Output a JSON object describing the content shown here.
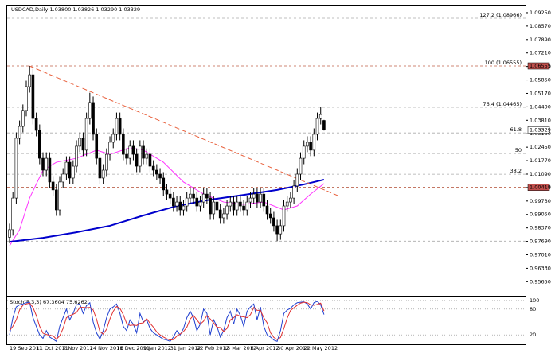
{
  "chart_data": {
    "type": "candlestick",
    "title": "USDCAD,Daily 1.03800 1.03826 1.03290 1.03329",
    "categories": [
      "19 Sep 2011",
      null,
      null,
      null,
      null,
      null,
      null,
      null,
      "11 Oct 2011",
      null,
      null,
      null,
      null,
      null,
      null,
      null,
      "2 Nov 2011",
      null,
      null,
      null,
      null,
      null,
      null,
      null,
      "24 Nov 2011",
      null,
      null,
      null,
      null,
      null,
      null,
      null,
      "16 Dec 2011",
      null,
      null,
      null,
      null,
      null,
      null,
      null,
      "9 Jan 2012",
      null,
      null,
      null,
      null,
      null,
      null,
      null,
      "31 Jan 2012",
      null,
      null,
      null,
      null,
      null,
      null,
      null,
      "22 Feb 2012",
      null,
      null,
      null,
      null,
      null,
      null,
      null,
      "15 Mar 2012",
      null,
      null,
      null,
      null,
      null,
      null,
      null,
      "6 Apr 2012",
      null,
      null,
      null,
      null,
      null,
      null,
      null,
      "30 Apr 2012",
      null,
      null,
      null,
      null,
      null,
      null,
      null,
      "22 May 2012",
      null,
      null,
      null,
      null,
      null,
      null
    ],
    "xlim": [
      0,
      154
    ],
    "ylim": [
      0.9494,
      1.0961
    ],
    "yticks": [
      {
        "value": 1.0925,
        "label": "1.09250"
      },
      {
        "value": 1.0857,
        "label": "1.08570"
      },
      {
        "value": 1.0789,
        "label": "1.07890"
      },
      {
        "value": 1.0721,
        "label": "1.07210"
      },
      {
        "value": 1.0653,
        "label": "1.06530"
      },
      {
        "value": 1.0585,
        "label": "1.05850"
      },
      {
        "value": 1.0517,
        "label": "1.05170"
      },
      {
        "value": 1.0449,
        "label": "1.04490"
      },
      {
        "value": 1.0381,
        "label": "1.03810"
      },
      {
        "value": 1.0313,
        "label": "1.03130"
      },
      {
        "value": 1.0245,
        "label": "1.02450"
      },
      {
        "value": 1.0177,
        "label": "1.01770"
      },
      {
        "value": 1.0109,
        "label": "1.01090"
      },
      {
        "value": 1.0041,
        "label": "1.00410"
      },
      {
        "value": 0.9973,
        "label": "0.99730"
      },
      {
        "value": 0.9905,
        "label": "0.99050"
      },
      {
        "value": 0.9837,
        "label": "0.98370"
      },
      {
        "value": 0.9769,
        "label": "0.97690"
      },
      {
        "value": 0.9701,
        "label": "0.97010"
      },
      {
        "value": 0.9633,
        "label": "0.96330"
      },
      {
        "value": 0.9565,
        "label": "0.95650"
      }
    ],
    "up_color": "#ffffff",
    "down_color": "#000000",
    "open": [
      0.979,
      0.9828,
      0.9988,
      1.029,
      1.035,
      1.0431,
      1.0551,
      1.0611,
      1.039,
      1.033,
      1.0189,
      1.0129,
      1.0189,
      1.0069,
      1.0029,
      0.9928,
      1.0069,
      1.0109,
      1.0169,
      1.0089,
      1.0149,
      1.025,
      1.029,
      1.023,
      1.039,
      1.0471,
      1.031,
      1.0189,
      1.0089,
      1.0129,
      1.0209,
      1.027,
      1.031,
      1.039,
      1.031,
      1.0209,
      1.0189,
      1.025,
      1.0209,
      1.0149,
      1.025,
      1.0189,
      1.0209,
      1.0149,
      1.0129,
      1.0109,
      1.0089,
      1.0029,
      1.0008,
      0.9988,
      0.9948,
      0.9968,
      0.9928,
      0.9948,
      0.9988,
      1.0008,
      0.9988,
      0.9948,
      0.9968,
      1.0008,
      0.9988,
      0.9908,
      0.9968,
      0.9928,
      0.9888,
      0.9908,
      0.9948,
      0.9968,
      0.9928,
      0.9968,
      0.9948,
      0.9928,
      0.9968,
      0.9988,
      1.0008,
      0.9968,
      1.0008,
      0.9948,
      0.9908,
      0.9888,
      0.9848,
      0.9807,
      0.9848,
      0.9948,
      0.9968,
      0.9988,
      1.0049,
      1.0109,
      1.0189,
      1.025,
      1.027,
      1.023,
      1.031,
      1.039,
      1.038
    ],
    "high": [
      0.9858,
      1.0018,
      1.032,
      1.038,
      1.0461,
      1.0581,
      1.0655,
      1.0641,
      1.042,
      1.036,
      1.0219,
      1.0219,
      1.0219,
      1.0099,
      1.0059,
      1.0099,
      1.0139,
      1.0199,
      1.0199,
      1.0179,
      1.028,
      1.032,
      1.032,
      1.042,
      1.052,
      1.0501,
      1.034,
      1.0219,
      1.0159,
      1.0239,
      1.03,
      1.034,
      1.042,
      1.042,
      1.034,
      1.0239,
      1.028,
      1.028,
      1.0239,
      1.028,
      1.028,
      1.0239,
      1.0239,
      1.0179,
      1.0159,
      1.0139,
      1.0119,
      1.0059,
      1.0038,
      1.0018,
      0.9998,
      0.9998,
      0.9978,
      1.0018,
      1.0038,
      1.0038,
      1.0018,
      0.9998,
      1.0038,
      1.0038,
      1.0018,
      0.9998,
      0.9998,
      0.9958,
      0.9938,
      0.9978,
      0.9998,
      0.9998,
      0.9998,
      0.9998,
      0.9978,
      0.9998,
      1.0018,
      1.0038,
      1.0038,
      1.0038,
      1.0038,
      0.9978,
      0.9938,
      0.9918,
      0.9878,
      0.9878,
      0.9978,
      0.9998,
      1.0018,
      1.0079,
      1.0139,
      1.0219,
      1.028,
      1.03,
      1.03,
      1.034,
      1.042,
      1.045,
      1.0383
    ],
    "low": [
      0.976,
      0.9798,
      0.9958,
      1.026,
      1.032,
      1.0401,
      1.0521,
      1.036,
      1.03,
      1.0159,
      1.0099,
      1.0099,
      1.0039,
      0.9999,
      0.9898,
      0.9898,
      1.0039,
      1.0079,
      1.0059,
      1.0059,
      1.0119,
      1.022,
      1.02,
      1.02,
      1.036,
      1.028,
      1.0159,
      1.0059,
      1.0059,
      1.0099,
      1.0179,
      1.024,
      1.028,
      1.028,
      1.0179,
      1.0159,
      1.0159,
      1.0179,
      1.0119,
      1.0119,
      1.0159,
      1.0159,
      1.0119,
      1.0099,
      1.0079,
      1.0059,
      0.9999,
      0.9978,
      0.9958,
      0.9918,
      0.9918,
      0.9898,
      0.9898,
      0.9918,
      0.9958,
      0.9958,
      0.9918,
      0.9918,
      0.9938,
      0.9958,
      0.9878,
      0.9878,
      0.9898,
      0.9858,
      0.9858,
      0.9878,
      0.9918,
      0.9898,
      0.9898,
      0.9918,
      0.9898,
      0.9898,
      0.9938,
      0.9958,
      0.9938,
      0.9938,
      0.9918,
      0.9878,
      0.9858,
      0.9818,
      0.977,
      0.9777,
      0.9818,
      0.9918,
      0.9938,
      0.9958,
      1.0019,
      1.0079,
      1.0159,
      1.022,
      1.02,
      1.02,
      1.028,
      1.036,
      1.0329
    ],
    "close": [
      0.9828,
      0.9988,
      1.029,
      1.035,
      1.0431,
      1.0551,
      1.0611,
      1.039,
      1.033,
      1.0189,
      1.0129,
      1.0189,
      1.0069,
      1.0029,
      0.9928,
      1.0069,
      1.0109,
      1.0169,
      1.0089,
      1.0149,
      1.025,
      1.029,
      1.023,
      1.039,
      1.0471,
      1.031,
      1.0189,
      1.0089,
      1.0129,
      1.0209,
      1.027,
      1.031,
      1.039,
      1.031,
      1.0209,
      1.0189,
      1.025,
      1.0209,
      1.0149,
      1.025,
      1.0189,
      1.0209,
      1.0149,
      1.0129,
      1.0109,
      1.0089,
      1.0029,
      1.0008,
      0.9988,
      0.9948,
      0.9968,
      0.9928,
      0.9948,
      0.9988,
      1.0008,
      0.9988,
      0.9948,
      0.9968,
      1.0008,
      0.9988,
      0.9908,
      0.9968,
      0.9928,
      0.9888,
      0.9908,
      0.9948,
      0.9968,
      0.9928,
      0.9968,
      0.9948,
      0.9928,
      0.9968,
      0.9988,
      1.0008,
      0.9968,
      1.0008,
      0.9948,
      0.9908,
      0.9888,
      0.9848,
      0.9807,
      0.9848,
      0.9948,
      0.9968,
      0.9988,
      1.0049,
      1.0109,
      1.0189,
      1.025,
      1.027,
      1.023,
      1.031,
      1.039,
      1.041,
      1.0333
    ],
    "overlays": [
      {
        "color": "#ff33ff",
        "width": 1,
        "x": [
          0,
          3,
          6,
          10,
          14,
          20,
          26,
          30,
          36,
          40,
          46,
          52,
          58,
          64,
          70,
          76,
          82,
          86,
          90,
          94
        ],
        "values": [
          0.9747,
          0.9828,
          0.9988,
          1.0129,
          1.0169,
          1.0189,
          1.023,
          1.0209,
          1.0242,
          1.023,
          1.0169,
          1.0069,
          1.0008,
          0.9968,
          0.9956,
          0.9968,
          0.9928,
          0.9948,
          1.0008,
          1.0061
        ]
      },
      {
        "color": "#0000cc",
        "width": 2,
        "x": [
          0,
          10,
          20,
          30,
          40,
          50,
          60,
          70,
          80,
          88,
          94
        ],
        "values": [
          0.9767,
          0.9787,
          0.9815,
          0.9848,
          0.99,
          0.9948,
          0.998,
          1.0004,
          1.0029,
          1.0057,
          1.0081
        ]
      }
    ],
    "trendline": {
      "color": "#e8603c",
      "x": [
        6,
        98.3
      ],
      "values": [
        1.0655,
        0.9999
      ]
    },
    "levels": [
      {
        "value": 1.08966,
        "label": "127.2 (1.08966)",
        "color": "#aaaaaa"
      },
      {
        "value": 1.06555,
        "label": "100 (1.06555)",
        "color": "#c0604a"
      },
      {
        "value": 1.04465,
        "label": "76.4 (1.04465)",
        "color": "#aaaaaa"
      },
      {
        "value": 1.03172,
        "label": "61.8",
        "color": "#aaaaaa"
      },
      {
        "value": 1.02128,
        "label": "50",
        "color": "#aaaaaa"
      },
      {
        "value": 1.01083,
        "label": "38.2",
        "color": "#aaaaaa"
      },
      {
        "value": 1.00418,
        "color": "#b04a30"
      },
      {
        "value": 0.977,
        "color": "#aaaaaa"
      }
    ],
    "price_tags": [
      {
        "value": 1.06555,
        "label": "1.06555",
        "color": "#c0504d",
        "text_color": "#ffffff"
      },
      {
        "value": 1.03329,
        "label": "1.03329",
        "color": "#ffffff",
        "text_color": "#000000"
      },
      {
        "value": 1.00418,
        "label": "1.00418",
        "color": "#c0504d",
        "text_color": "#ffffff"
      }
    ],
    "indicator": {
      "title": "Stoch(5,3,3) 67.3604 75.6262",
      "ylim": [
        0,
        100
      ],
      "yticks": [
        100,
        80,
        20
      ],
      "series": [
        {
          "color": "#1f3fd0",
          "values": [
            20,
            60,
            85,
            90,
            92,
            95,
            96,
            60,
            40,
            20,
            12,
            30,
            15,
            10,
            5,
            40,
            60,
            80,
            55,
            70,
            90,
            92,
            70,
            88,
            95,
            50,
            25,
            10,
            30,
            60,
            80,
            85,
            92,
            70,
            40,
            30,
            55,
            45,
            25,
            70,
            50,
            55,
            35,
            25,
            20,
            15,
            10,
            8,
            5,
            15,
            30,
            20,
            35,
            60,
            75,
            60,
            30,
            45,
            80,
            70,
            20,
            55,
            40,
            15,
            30,
            60,
            75,
            45,
            80,
            65,
            40,
            75,
            85,
            92,
            55,
            85,
            40,
            20,
            15,
            8,
            5,
            30,
            70,
            78,
            82,
            90,
            95,
            96,
            97,
            92,
            80,
            95,
            98,
            90,
            67.3604
          ]
        },
        {
          "color": "#e03030",
          "values": [
            30,
            40,
            55,
            78,
            89,
            92,
            94,
            84,
            65,
            40,
            24,
            21,
            19,
            18,
            10,
            18,
            35,
            60,
            65,
            68,
            72,
            84,
            84,
            83,
            84,
            78,
            57,
            28,
            22,
            33,
            57,
            75,
            86,
            82,
            67,
            47,
            42,
            43,
            42,
            47,
            48,
            58,
            47,
            38,
            27,
            20,
            15,
            11,
            8,
            9,
            17,
            22,
            28,
            38,
            57,
            65,
            55,
            45,
            52,
            65,
            57,
            48,
            38,
            37,
            28,
            35,
            55,
            60,
            67,
            63,
            62,
            60,
            67,
            84,
            77,
            77,
            60,
            48,
            25,
            14,
            9,
            14,
            35,
            59,
            77,
            83,
            89,
            94,
            96,
            95,
            90,
            89,
            91,
            94,
            75.6262
          ]
        }
      ]
    }
  }
}
